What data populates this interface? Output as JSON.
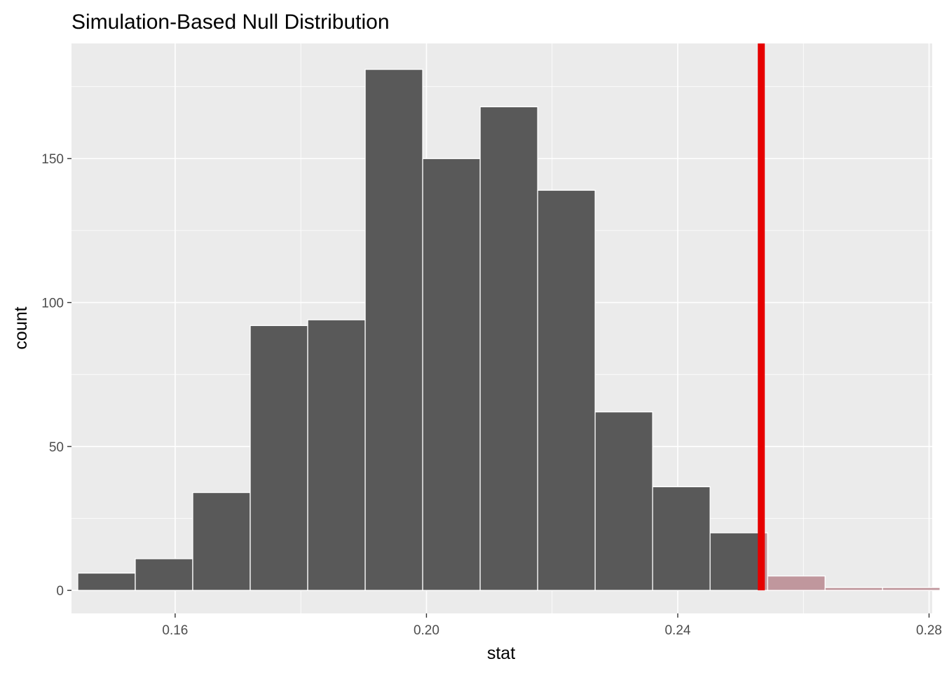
{
  "chart_data": {
    "type": "bar",
    "subtype": "histogram",
    "title": "Simulation-Based Null Distribution",
    "xlabel": "stat",
    "ylabel": "count",
    "xlim": [
      0.1435,
      0.2805
    ],
    "ylim": [
      -8,
      190
    ],
    "x_ticks": [
      0.16,
      0.2,
      0.24,
      0.28
    ],
    "x_tick_labels": [
      "0.16",
      "0.20",
      "0.24",
      "0.28"
    ],
    "y_ticks": [
      0,
      50,
      100,
      150
    ],
    "y_tick_labels": [
      "0",
      "50",
      "100",
      "150"
    ],
    "bin_width": 0.00915,
    "bins": [
      {
        "xmin": 0.1445,
        "xmax": 0.15365,
        "count": 6
      },
      {
        "xmin": 0.15365,
        "xmax": 0.1628,
        "count": 11
      },
      {
        "xmin": 0.1628,
        "xmax": 0.17195,
        "count": 34
      },
      {
        "xmin": 0.17195,
        "xmax": 0.1811,
        "count": 92
      },
      {
        "xmin": 0.1811,
        "xmax": 0.19025,
        "count": 94
      },
      {
        "xmin": 0.19025,
        "xmax": 0.1994,
        "count": 181
      },
      {
        "xmin": 0.1994,
        "xmax": 0.20855,
        "count": 150
      },
      {
        "xmin": 0.20855,
        "xmax": 0.2177,
        "count": 168
      },
      {
        "xmin": 0.2177,
        "xmax": 0.22685,
        "count": 139
      },
      {
        "xmin": 0.22685,
        "xmax": 0.236,
        "count": 62
      },
      {
        "xmin": 0.236,
        "xmax": 0.24515,
        "count": 36
      },
      {
        "xmin": 0.24515,
        "xmax": 0.2543,
        "count": 20
      },
      {
        "xmin": 0.2543,
        "xmax": 0.26345,
        "count": 5
      },
      {
        "xmin": 0.26345,
        "xmax": 0.2726,
        "count": 1
      },
      {
        "xmin": 0.2726,
        "xmax": 0.28175,
        "count": 1
      }
    ],
    "observed_stat": 0.2533,
    "grid": true,
    "colors": {
      "bar_fill": "#595959",
      "bar_stroke": "#ffffff",
      "shade_fill": "#c0979d",
      "observed_line": "#e60000",
      "panel_background": "#ebebeb",
      "grid_major": "#ffffff"
    }
  }
}
